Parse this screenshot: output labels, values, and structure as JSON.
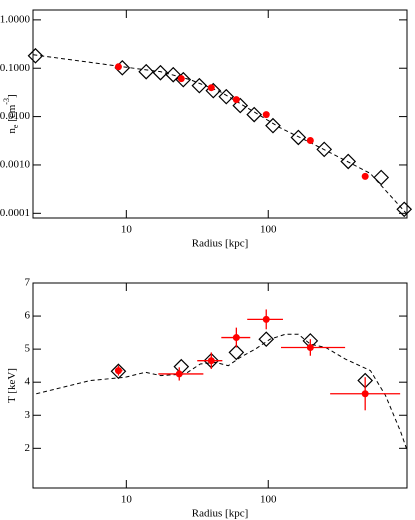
{
  "chart_data": [
    {
      "type": "scatter",
      "xscale": "log",
      "yscale": "log",
      "xlabel": "Radius [kpc]",
      "ylabel": [
        "n",
        "e",
        " [cm",
        "-3",
        "]"
      ],
      "xlim": [
        2.2,
        950
      ],
      "ylim": [
        8e-05,
        1.6
      ],
      "xticks": [
        10,
        100
      ],
      "yticks": [
        {
          "value": 1,
          "label": "1.0000"
        },
        {
          "value": 0.1,
          "label": "0.1000"
        },
        {
          "value": 0.01,
          "label": "0.0100"
        },
        {
          "value": 0.001,
          "label": "0.0010"
        },
        {
          "value": 0.0001,
          "label": "0.0001"
        }
      ],
      "series": [
        {
          "line": "dashed",
          "color": "#000000",
          "x": [
            2.21,
            6.56,
            10.7,
            17.4,
            28.2,
            45.9,
            74.6,
            121,
            198,
            322,
            523,
            950
          ],
          "values": [
            0.19,
            0.124,
            0.102,
            0.085,
            0.058,
            0.0327,
            0.014,
            0.0059,
            0.0029,
            0.0014,
            0.00067,
            9.63e-05
          ]
        },
        {
          "marker": "diamond",
          "color": "#000000",
          "x": [
            2.29,
            9.37,
            13.8,
            17.4,
            21.4,
            25.2,
            32.7,
            41.0,
            50.6,
            63.5,
            79.6,
            108,
            163,
            248,
            366,
            625,
            908
          ],
          "values": [
            0.181,
            0.102,
            0.0847,
            0.0807,
            0.0734,
            0.058,
            0.0436,
            0.0344,
            0.0258,
            0.0169,
            0.011,
            0.0065,
            0.0037,
            0.0021,
            0.00118,
            0.00055,
            0.000121
          ]
        },
        {
          "marker": "circle",
          "color": "#ff0000",
          "x": [
            8.8,
            24.4,
            39.7,
            59.6,
            96.8,
            198,
            482
          ],
          "values": [
            0.107,
            0.0608,
            0.0396,
            0.0224,
            0.011,
            0.0032,
            0.00058
          ]
        }
      ]
    },
    {
      "type": "scatter",
      "xscale": "log",
      "xlabel": "Radius [kpc]",
      "ylabel": [
        "T [keV]"
      ],
      "xlim": [
        2.2,
        950
      ],
      "ylim": [
        0.8,
        7
      ],
      "xticks": [
        10,
        100
      ],
      "yticks": [
        2,
        3,
        4,
        5,
        6,
        7
      ],
      "series": [
        {
          "line": "dashed",
          "color": "#000000",
          "x": [
            2.32,
            5.57,
            9.84,
            13.6,
            17.5,
            26.0,
            33.2,
            42.3,
            52.3,
            63.5,
            81.0,
            103,
            132,
            163,
            198,
            254,
            349,
            525,
            670,
            857,
            950
          ],
          "values": [
            3.65,
            4.05,
            4.15,
            4.3,
            4.2,
            4.25,
            4.55,
            4.6,
            4.5,
            4.75,
            5.0,
            5.3,
            5.45,
            5.45,
            5.15,
            5.05,
            4.7,
            4.35,
            3.6,
            2.5,
            1.95
          ]
        },
        {
          "marker": "diamond",
          "color": "#000000",
          "x": [
            8.8,
            24.4,
            39.7,
            59.6,
            96.8,
            198,
            482
          ],
          "values": [
            4.33,
            4.47,
            4.65,
            4.9,
            5.3,
            5.25,
            4.05
          ]
        },
        {
          "marker": "circle",
          "color": "#ff0000",
          "x": [
            8.8,
            23.6,
            39.7,
            59.6,
            96.8,
            198,
            482
          ],
          "values": [
            4.35,
            4.25,
            4.65,
            5.35,
            5.9,
            5.05,
            3.65
          ],
          "yerr": [
            0.15,
            0.2,
            0.25,
            0.3,
            0.3,
            0.25,
            0.5
          ],
          "x_low": [
            8.4,
            16.8,
            31.6,
            46.7,
            71.1,
            123,
            273
          ],
          "x_high": [
            9.4,
            34.9,
            47.5,
            74.7,
            127,
            348,
            850
          ]
        }
      ]
    }
  ]
}
